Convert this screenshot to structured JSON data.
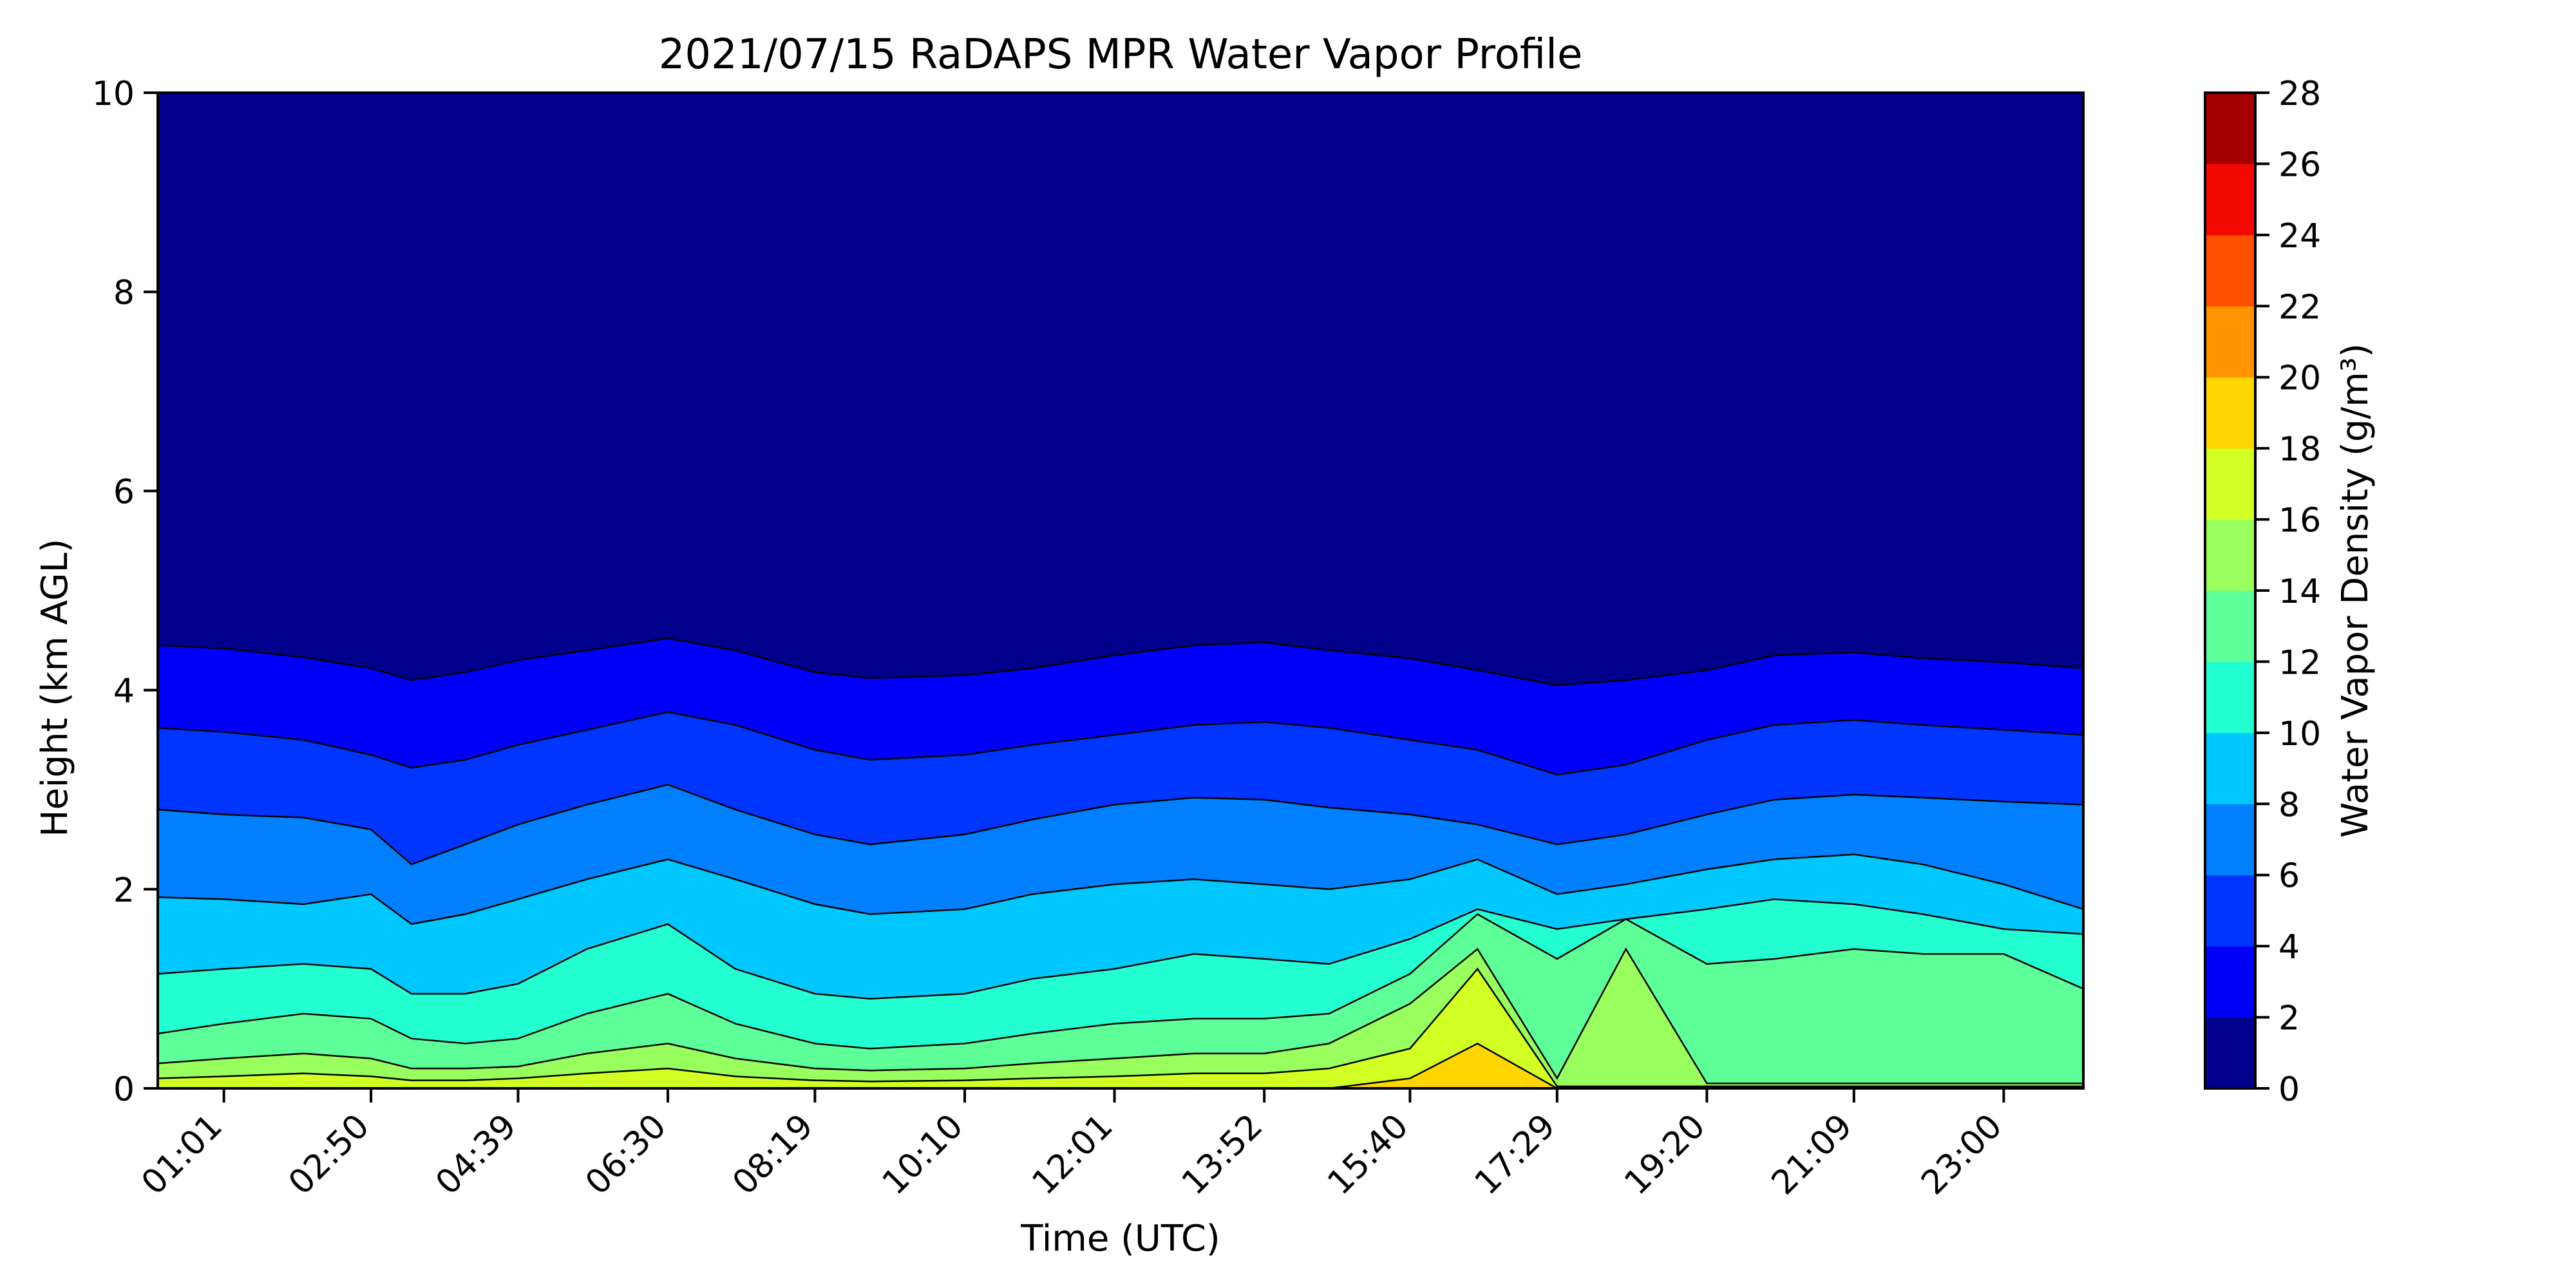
{
  "chart_data": {
    "type": "heatmap",
    "subtype": "filled contour",
    "title": "2021/07/15 RaDAPS MPR Water Vapor Profile",
    "xlabel": "Time (UTC)",
    "ylabel": "Height (km AGL)",
    "colorbar_label": "Water Vapor Density (g/m³)",
    "xlim": [
      "00:12",
      "23:59"
    ],
    "ylim": [
      0,
      10
    ],
    "x_ticks": [
      "01:01",
      "02:50",
      "04:39",
      "06:30",
      "08:19",
      "10:10",
      "12:01",
      "13:52",
      "15:40",
      "17:29",
      "19:20",
      "21:09",
      "23:00"
    ],
    "x_tick_times": [
      "01:01",
      "02:50",
      "04:39",
      "06:30",
      "08:19",
      "10:10",
      "12:01",
      "13:52",
      "15:40",
      "17:29",
      "19:20",
      "21:09",
      "23:00"
    ],
    "y_ticks": [
      0,
      2,
      4,
      6,
      8,
      10
    ],
    "colorbar_ticks": [
      0,
      2,
      4,
      6,
      8,
      10,
      12,
      14,
      16,
      18,
      20,
      22,
      24,
      26,
      28
    ],
    "levels": [
      0,
      2,
      4,
      6,
      8,
      10,
      12,
      14,
      16,
      18,
      20,
      22,
      24,
      26,
      28
    ],
    "level_colors": [
      "#00008d",
      "#0000f8",
      "#0034ff",
      "#0080ff",
      "#00c8ff",
      "#24ffd2",
      "#5eff98",
      "#98ff5e",
      "#d2ff24",
      "#ffd600",
      "#ff9400",
      "#ff5000",
      "#f10800",
      "#a70000"
    ],
    "sample_times": [
      "00:12",
      "01:01",
      "02:00",
      "02:50",
      "03:20",
      "04:00",
      "04:39",
      "05:30",
      "06:30",
      "07:20",
      "08:19",
      "09:00",
      "10:10",
      "11:00",
      "12:01",
      "13:00",
      "13:52",
      "14:40",
      "15:40",
      "16:30",
      "17:29",
      "18:20",
      "19:20",
      "20:10",
      "21:09",
      "22:00",
      "23:00",
      "23:59"
    ],
    "contour_heights_km": {
      "2": [
        4.45,
        4.42,
        4.33,
        4.22,
        4.1,
        4.18,
        4.3,
        4.4,
        4.52,
        4.4,
        4.18,
        4.12,
        4.15,
        4.22,
        4.35,
        4.45,
        4.48,
        4.4,
        4.32,
        4.2,
        4.05,
        4.1,
        4.2,
        4.35,
        4.38,
        4.32,
        4.28,
        4.22
      ],
      "4": [
        3.62,
        3.58,
        3.5,
        3.35,
        3.22,
        3.3,
        3.45,
        3.6,
        3.78,
        3.65,
        3.4,
        3.3,
        3.35,
        3.45,
        3.55,
        3.65,
        3.68,
        3.62,
        3.5,
        3.4,
        3.15,
        3.25,
        3.5,
        3.65,
        3.7,
        3.65,
        3.6,
        3.55
      ],
      "6": [
        2.8,
        2.75,
        2.72,
        2.6,
        2.25,
        2.45,
        2.65,
        2.85,
        3.05,
        2.8,
        2.55,
        2.45,
        2.55,
        2.7,
        2.85,
        2.92,
        2.9,
        2.82,
        2.75,
        2.65,
        2.45,
        2.55,
        2.75,
        2.9,
        2.95,
        2.92,
        2.88,
        2.85
      ],
      "8": [
        1.92,
        1.9,
        1.85,
        1.95,
        1.65,
        1.75,
        1.9,
        2.1,
        2.3,
        2.1,
        1.85,
        1.75,
        1.8,
        1.95,
        2.05,
        2.1,
        2.05,
        2.0,
        2.1,
        2.3,
        1.95,
        2.05,
        2.2,
        2.3,
        2.35,
        2.25,
        2.05,
        1.8
      ],
      "10": [
        1.15,
        1.2,
        1.25,
        1.2,
        0.95,
        0.95,
        1.05,
        1.4,
        1.65,
        1.2,
        0.95,
        0.9,
        0.95,
        1.1,
        1.2,
        1.35,
        1.3,
        1.25,
        1.5,
        1.8,
        1.6,
        1.7,
        1.8,
        1.9,
        1.85,
        1.75,
        1.6,
        1.55
      ],
      "12": [
        0.55,
        0.65,
        0.75,
        0.7,
        0.5,
        0.45,
        0.5,
        0.75,
        0.95,
        0.65,
        0.45,
        0.4,
        0.45,
        0.55,
        0.65,
        0.7,
        0.7,
        0.75,
        1.15,
        1.75,
        1.3,
        1.7,
        1.25,
        1.3,
        1.4,
        1.35,
        1.35,
        1.0
      ],
      "14": [
        0.25,
        0.3,
        0.35,
        0.3,
        0.2,
        0.2,
        0.22,
        0.35,
        0.45,
        0.3,
        0.2,
        0.18,
        0.2,
        0.25,
        0.3,
        0.35,
        0.35,
        0.45,
        0.85,
        1.4,
        0.1,
        1.4,
        0.05,
        0.05,
        0.05,
        0.05,
        0.05,
        0.05
      ],
      "16": [
        0.1,
        0.12,
        0.15,
        0.12,
        0.08,
        0.08,
        0.1,
        0.15,
        0.2,
        0.12,
        0.08,
        0.07,
        0.08,
        0.1,
        0.12,
        0.15,
        0.15,
        0.2,
        0.4,
        1.2,
        0.02,
        0.02,
        0.02,
        0.02,
        0.02,
        0.02,
        0.02,
        0.02
      ],
      "18": [
        0.0,
        0.0,
        0.0,
        0.0,
        0.0,
        0.0,
        0.0,
        0.0,
        0.0,
        0.0,
        0.0,
        0.0,
        0.0,
        0.0,
        0.0,
        0.0,
        0.0,
        0.0,
        0.1,
        0.45,
        0.0,
        0.0,
        0.0,
        0.0,
        0.0,
        0.0,
        0.0,
        0.0
      ]
    }
  }
}
